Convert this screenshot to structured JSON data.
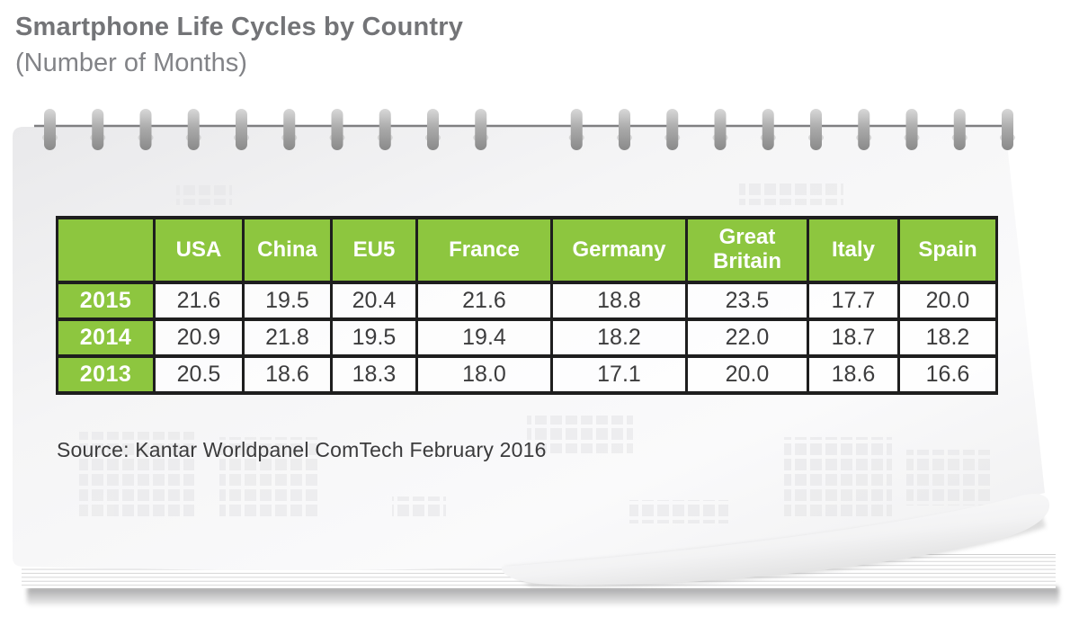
{
  "page": {
    "title": "Smartphone Life Cycles by Country",
    "subtitle": "(Number of Months)",
    "source": "Source: Kantar Worldpanel ComTech February 2016"
  },
  "table": {
    "corner_label": "",
    "columns": [
      "USA",
      "China",
      "EU5",
      "France",
      "Germany",
      "Great Britain",
      "Italy",
      "Spain"
    ],
    "rows": [
      {
        "label": "2015",
        "values": [
          "21.6",
          "19.5",
          "20.4",
          "21.6",
          "18.8",
          "23.5",
          "17.7",
          "20.0"
        ]
      },
      {
        "label": "2014",
        "values": [
          "20.9",
          "21.8",
          "19.5",
          "19.4",
          "18.2",
          "22.0",
          "18.7",
          "18.2"
        ]
      },
      {
        "label": "2013",
        "values": [
          "20.5",
          "18.6",
          "18.3",
          "18.0",
          "17.1",
          "20.0",
          "18.6",
          "16.6"
        ]
      }
    ]
  },
  "chart_data": {
    "type": "table",
    "title": "Smartphone Life Cycles by Country (Number of Months)",
    "categories": [
      "USA",
      "China",
      "EU5",
      "France",
      "Germany",
      "Great Britain",
      "Italy",
      "Spain"
    ],
    "series": [
      {
        "name": "2015",
        "values": [
          21.6,
          19.5,
          20.4,
          21.6,
          18.8,
          23.5,
          17.7,
          20.0
        ]
      },
      {
        "name": "2014",
        "values": [
          20.9,
          21.8,
          19.5,
          19.4,
          18.2,
          22.0,
          18.7,
          18.2
        ]
      },
      {
        "name": "2013",
        "values": [
          20.5,
          18.6,
          18.3,
          18.0,
          17.1,
          20.0,
          18.6,
          16.6
        ]
      }
    ],
    "unit": "months",
    "source": "Kantar Worldpanel ComTech February 2016"
  },
  "colors": {
    "header_green": "#8dc63f",
    "border_dark": "#1e1e1e",
    "title_gray": "#737477",
    "subtitle_gray": "#828387"
  }
}
